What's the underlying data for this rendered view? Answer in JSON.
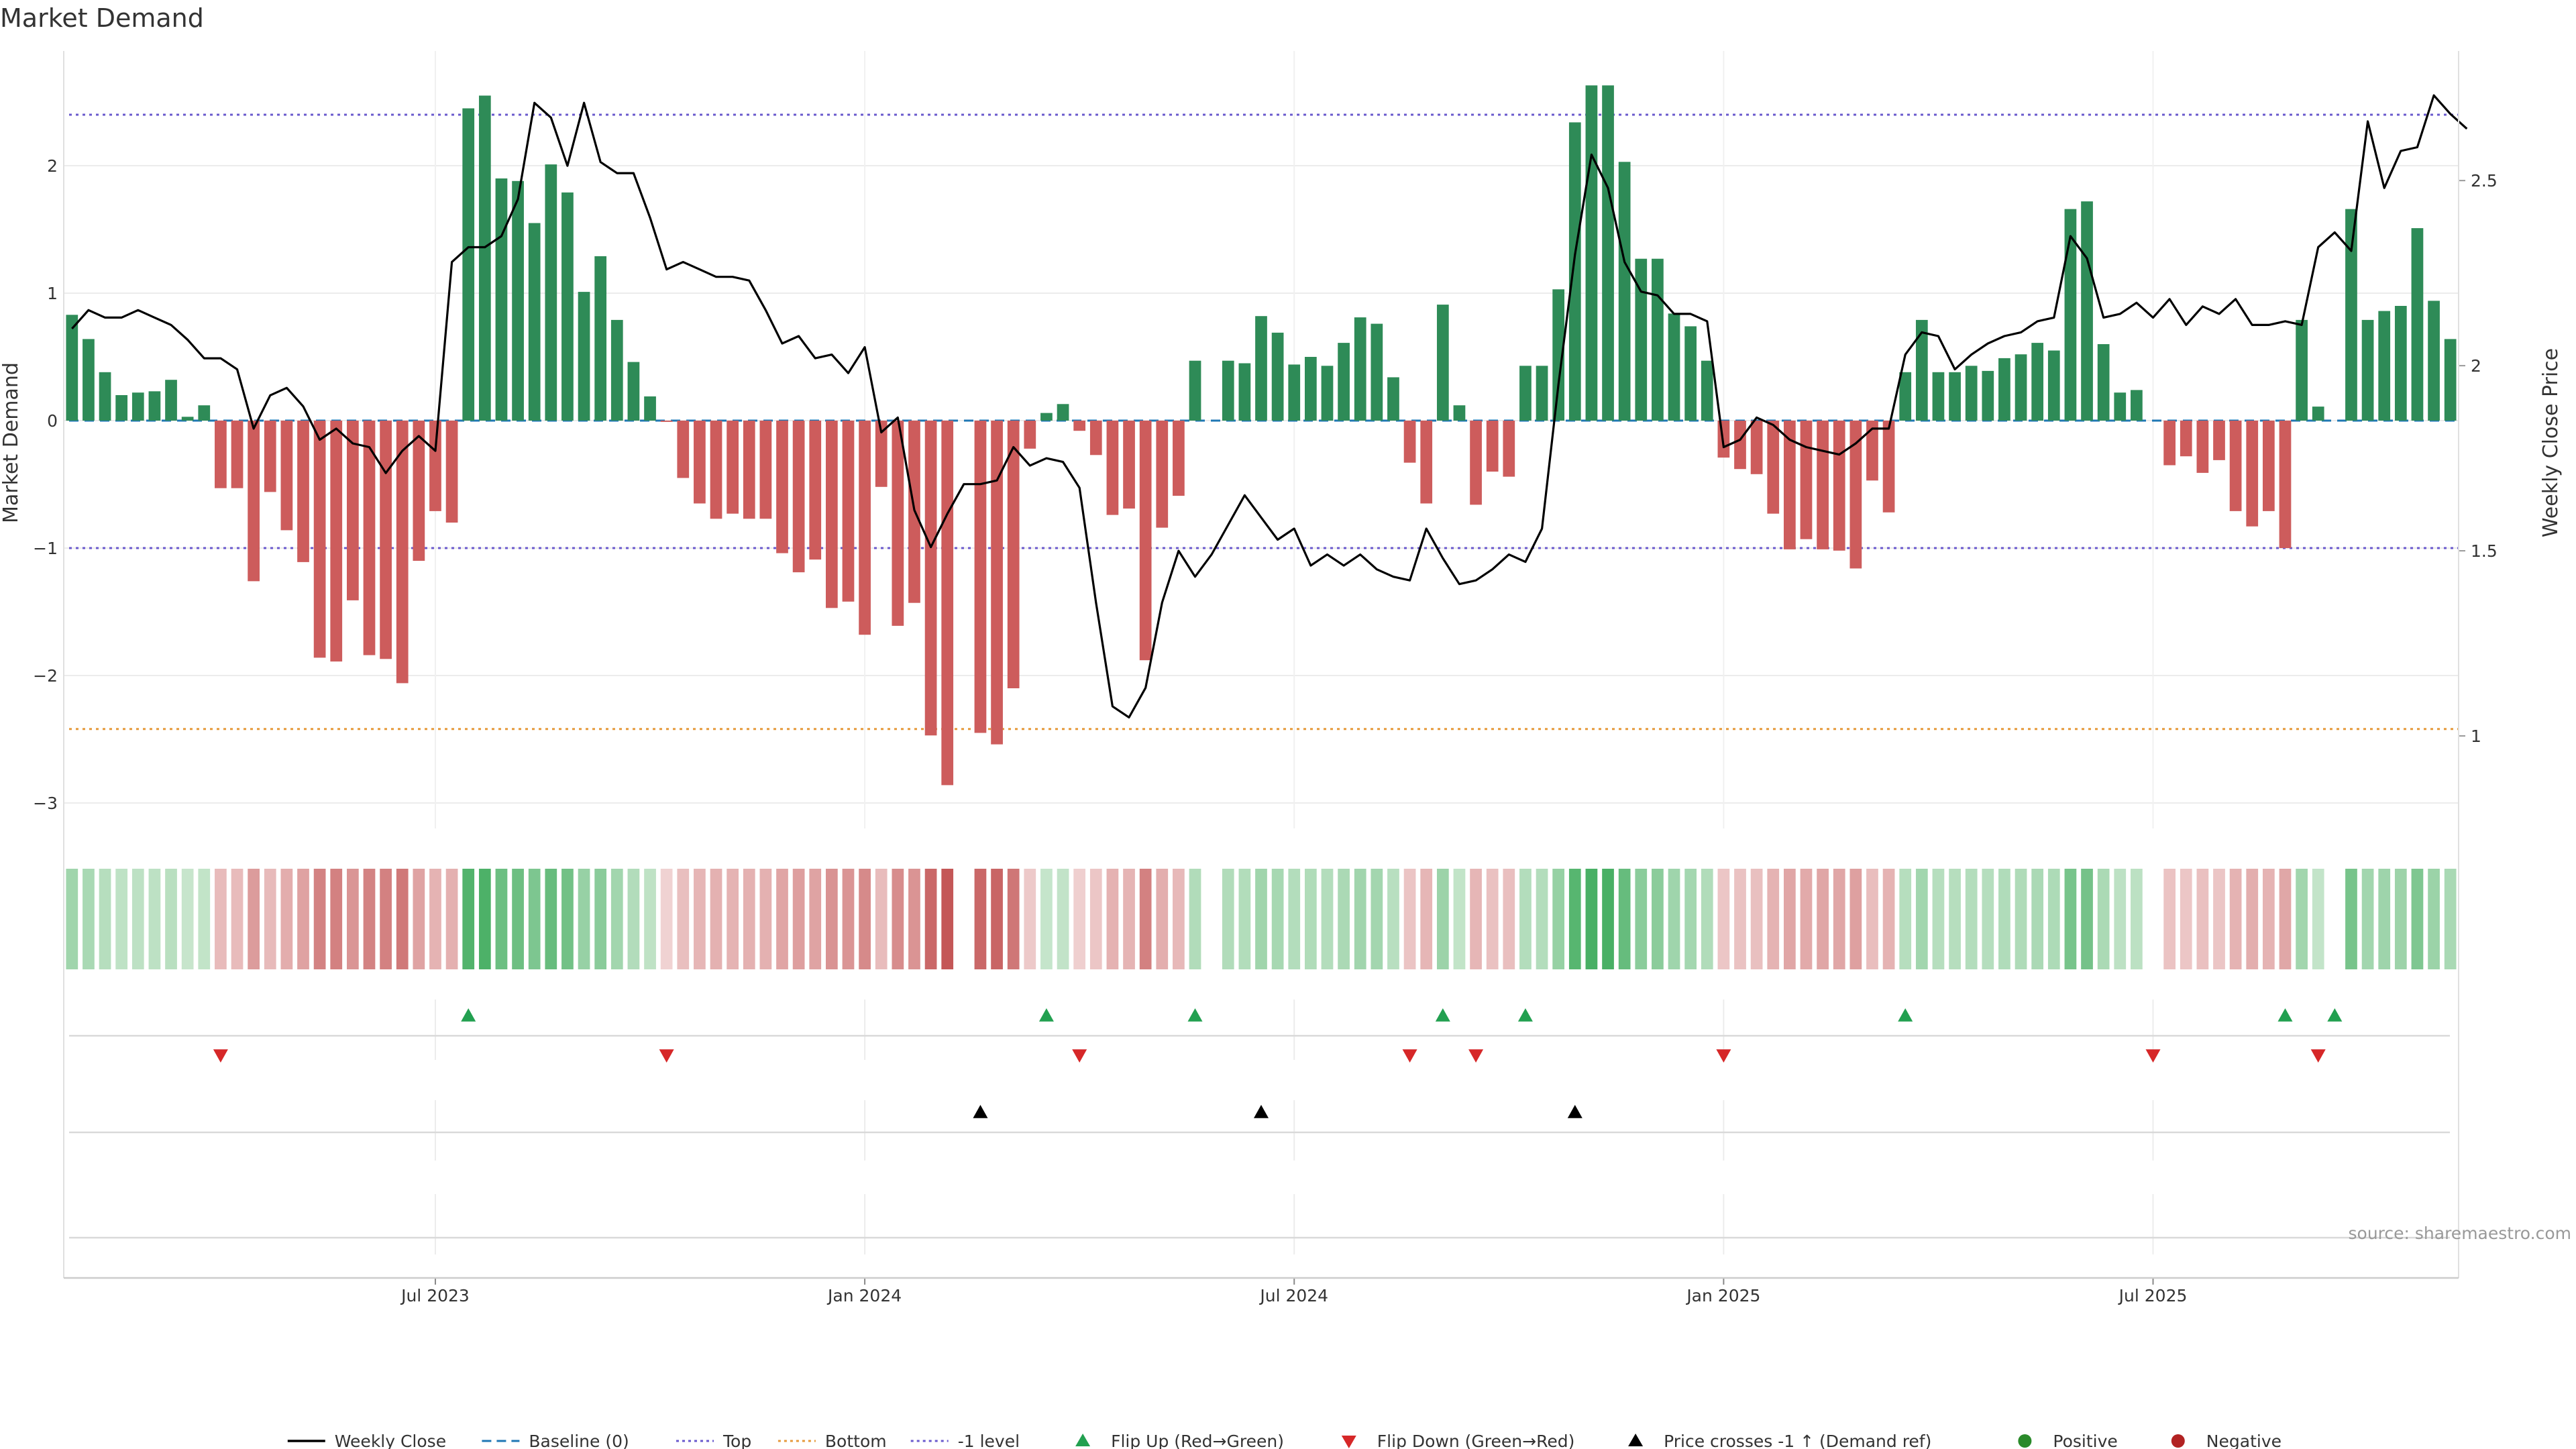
{
  "chart_data": {
    "type": "bar",
    "title": "Market Demand",
    "ylabel": "Market Demand",
    "ylabel_right": "Weekly Close Price",
    "ylim": [
      -3.2,
      2.9
    ],
    "y2lim": [
      0.75,
      2.85
    ],
    "yticks": [
      {
        "v": 2,
        "label": "2"
      },
      {
        "v": 1,
        "label": "1"
      },
      {
        "v": 0,
        "label": "0"
      },
      {
        "v": -1,
        "label": "−1"
      },
      {
        "v": -2,
        "label": "−2"
      },
      {
        "v": -3,
        "label": "−3"
      }
    ],
    "y2ticks": [
      {
        "v": 2.5,
        "label": "2.5"
      },
      {
        "v": 2,
        "label": "2"
      },
      {
        "v": 1.5,
        "label": "1.5"
      },
      {
        "v": 1,
        "label": "1"
      }
    ],
    "xticks": [
      {
        "i": 22,
        "label": "Jul 2023"
      },
      {
        "i": 48,
        "label": "Jan 2024"
      },
      {
        "i": 74,
        "label": "Jul 2024"
      },
      {
        "i": 100,
        "label": "Jan 2025"
      },
      {
        "i": 126,
        "label": "Jul 2025"
      }
    ],
    "levels": {
      "top": 2.4,
      "bottom": -2.42,
      "minus_one": -1
    },
    "demand": [
      0.83,
      0.64,
      0.38,
      0.2,
      0.22,
      0.23,
      0.32,
      0.03,
      0.12,
      -0.53,
      -0.53,
      -1.26,
      -0.56,
      -0.86,
      -1.11,
      -1.86,
      -1.89,
      -1.41,
      -1.84,
      -1.87,
      -2.06,
      -1.1,
      -0.71,
      -0.8,
      2.45,
      2.55,
      1.9,
      1.88,
      1.55,
      2.01,
      1.79,
      1.01,
      1.29,
      0.79,
      0.46,
      0.19,
      -0.01,
      -0.45,
      -0.65,
      -0.77,
      -0.73,
      -0.77,
      -0.77,
      -1.04,
      -1.19,
      -1.09,
      -1.47,
      -1.42,
      -1.68,
      -0.52,
      -1.61,
      -1.43,
      -2.47,
      -2.86,
      0,
      -2.45,
      -2.54,
      -2.1,
      -0.22,
      0.06,
      0.13,
      -0.08,
      -0.27,
      -0.74,
      -0.69,
      -1.88,
      -0.84,
      -0.59,
      0.47,
      0,
      0.47,
      0.45,
      0.82,
      0.69,
      0.44,
      0.5,
      0.43,
      0.61,
      0.81,
      0.76,
      0.34,
      -0.33,
      -0.65,
      0.91,
      0.12,
      -0.66,
      -0.4,
      -0.44,
      0.43,
      0.43,
      1.03,
      2.34,
      2.63,
      2.63,
      2.03,
      1.27,
      1.27,
      0.84,
      0.74,
      0.47,
      -0.29,
      -0.38,
      -0.42,
      -0.73,
      -1.01,
      -0.93,
      -1.01,
      -1.02,
      -1.16,
      -0.47,
      -0.72,
      0.38,
      0.79,
      0.38,
      0.38,
      0.43,
      0.39,
      0.49,
      0.52,
      0.61,
      0.55,
      1.66,
      1.72,
      0.6,
      0.22,
      0.24,
      0,
      -0.35,
      -0.28,
      -0.41,
      -0.31,
      -0.71,
      -0.83,
      -0.71,
      -1.0,
      0.79,
      0.11,
      0,
      1.66,
      0.79,
      0.86,
      0.9,
      1.51,
      0.94,
      0.64
    ],
    "price": [
      2.1,
      2.15,
      2.13,
      2.13,
      2.15,
      2.13,
      2.11,
      2.07,
      2.02,
      2.02,
      1.99,
      1.83,
      1.92,
      1.94,
      1.89,
      1.8,
      1.83,
      1.79,
      1.78,
      1.71,
      1.77,
      1.81,
      1.77,
      2.28,
      2.32,
      2.32,
      2.35,
      2.45,
      2.71,
      2.67,
      2.54,
      2.71,
      2.55,
      2.52,
      2.52,
      2.4,
      2.26,
      2.28,
      2.26,
      2.24,
      2.24,
      2.23,
      2.15,
      2.06,
      2.08,
      2.02,
      2.03,
      1.98,
      2.05,
      1.82,
      1.86,
      1.61,
      1.51,
      1.6,
      1.68,
      1.68,
      1.69,
      1.78,
      1.73,
      1.75,
      1.74,
      1.67,
      1.36,
      1.08,
      1.05,
      1.13,
      1.36,
      1.5,
      1.43,
      1.49,
      1.57,
      1.65,
      1.59,
      1.53,
      1.56,
      1.46,
      1.49,
      1.46,
      1.49,
      1.45,
      1.43,
      1.42,
      1.56,
      1.48,
      1.41,
      1.42,
      1.45,
      1.49,
      1.47,
      1.56,
      1.95,
      2.3,
      2.57,
      2.48,
      2.28,
      2.2,
      2.19,
      2.14,
      2.14,
      2.12,
      1.78,
      1.8,
      1.86,
      1.84,
      1.8,
      1.78,
      1.77,
      1.76,
      1.79,
      1.83,
      1.83,
      2.03,
      2.09,
      2.08,
      1.99,
      2.03,
      2.06,
      2.08,
      2.09,
      2.12,
      2.13,
      2.35,
      2.29,
      2.13,
      2.14,
      2.17,
      2.13,
      2.18,
      2.11,
      2.16,
      2.14,
      2.18,
      2.11,
      2.11,
      2.12,
      2.11,
      2.32,
      2.36,
      2.31,
      2.66,
      2.48,
      2.58,
      2.59,
      2.73,
      2.68,
      2.64
    ],
    "flip_up": [
      24,
      59,
      68,
      83,
      88,
      111,
      134,
      137
    ],
    "flip_down": [
      9,
      36,
      61,
      81,
      85,
      100,
      126,
      136
    ],
    "price_cross": [
      55,
      72,
      91
    ],
    "legend": [
      "Weekly Close",
      "Baseline (0)",
      "Top",
      "Bottom",
      "-1 level",
      "Flip Up (Red→Green)",
      "Flip Down (Green→Red)",
      "Price crosses -1 ↑ (Demand ref)",
      "Positive",
      "Negative"
    ]
  },
  "source": "source: sharemaestro.com",
  "colors": {
    "positive": "#2e8b57",
    "negative": "#cd5c5c",
    "price": "#000000",
    "baseline": "#1f77b4",
    "top": "#6a5acd",
    "bottom": "#e69a3c",
    "minus_one": "#6a5acd",
    "flip_up": "#22a050",
    "flip_down": "#d62728",
    "cross": "#000000",
    "pos_dot": "#2a8a2a",
    "neg_dot": "#b22222"
  }
}
